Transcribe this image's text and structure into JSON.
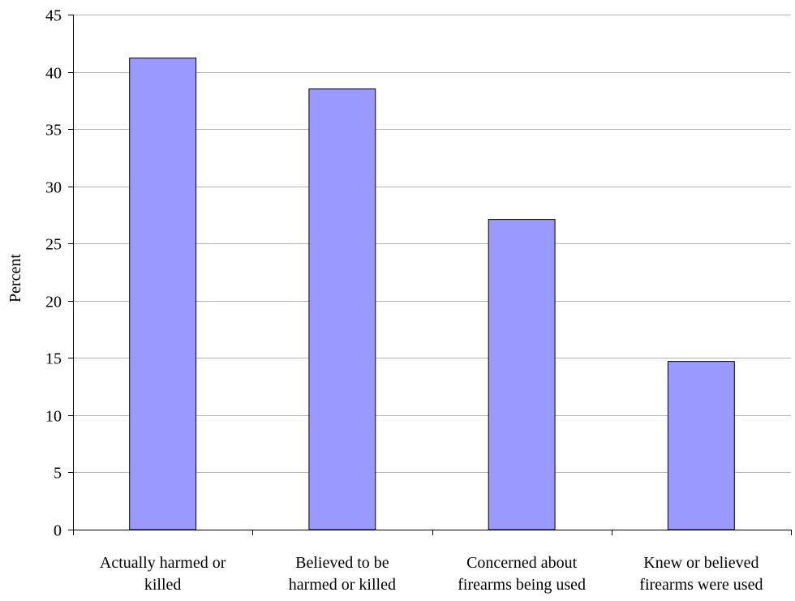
{
  "chart_data": {
    "type": "bar",
    "title": "",
    "xlabel": "",
    "ylabel": "Percent",
    "ylim": [
      0,
      45
    ],
    "yticks": [
      0,
      5,
      10,
      15,
      20,
      25,
      30,
      35,
      40,
      45
    ],
    "grid": true,
    "legend": "none",
    "categories": [
      "Actually harmed or killed",
      "Believed to be harmed or killed",
      "Concerned about firearms being used",
      "Knew or believed firearms were used"
    ],
    "category_lines": [
      [
        "Actually harmed or",
        "killed"
      ],
      [
        "Believed to be",
        "harmed or killed"
      ],
      [
        "Concerned about",
        "firearms being used"
      ],
      [
        "Knew or believed",
        "firearms were used"
      ]
    ],
    "values": [
      41.2,
      38.5,
      27.1,
      14.7
    ],
    "bar_color": "#9999ff",
    "bar_border_color": "#000000",
    "grid_color": "#b3b3b3"
  }
}
